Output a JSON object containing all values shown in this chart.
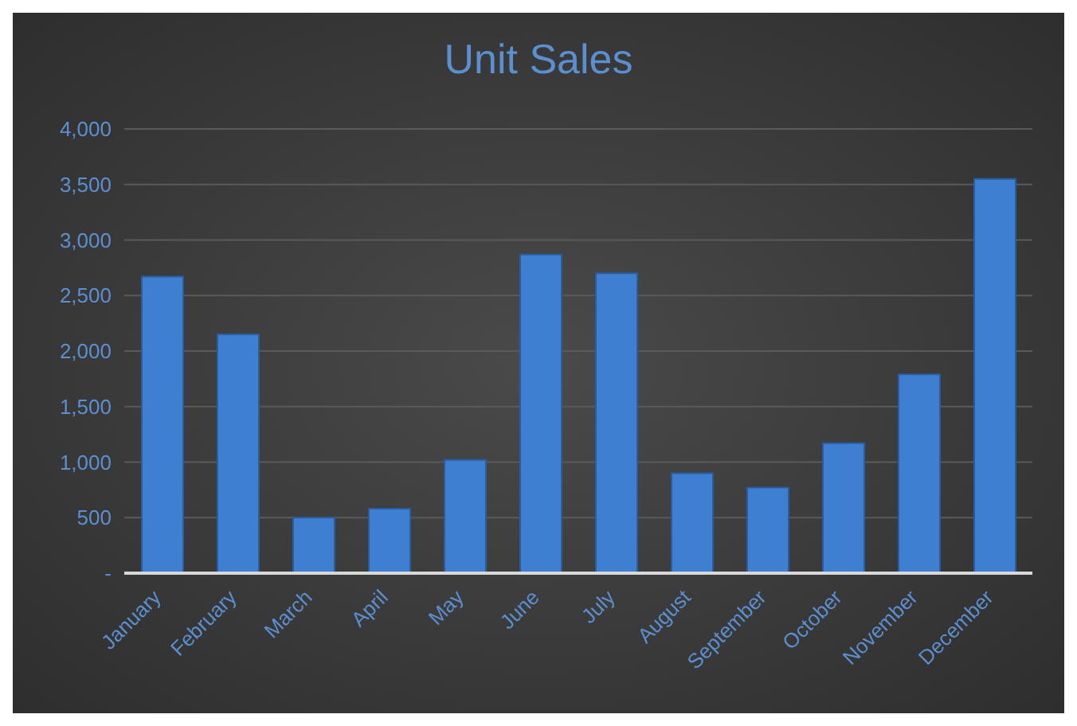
{
  "chart_data": {
    "type": "bar",
    "title": "Unit Sales",
    "categories": [
      "January",
      "February",
      "March",
      "April",
      "May",
      "June",
      "July",
      "August",
      "September",
      "October",
      "November",
      "December"
    ],
    "values": [
      2670,
      2150,
      500,
      580,
      1020,
      2870,
      2700,
      900,
      770,
      1170,
      1790,
      3550
    ],
    "color": "#3f7fd2",
    "ylim": [
      0,
      4000
    ],
    "yticks": [
      {
        "value": 0,
        "label": "-"
      },
      500,
      {
        "value": 1000,
        "label": "1,000"
      },
      {
        "value": 1500,
        "label": "1,500"
      },
      {
        "value": 2000,
        "label": "2,000"
      },
      {
        "value": 2500,
        "label": "2,500"
      },
      {
        "value": 3000,
        "label": "3,000"
      },
      {
        "value": 3500,
        "label": "3,500"
      },
      {
        "value": 4000,
        "label": "4,000"
      }
    ],
    "grid": "y"
  }
}
